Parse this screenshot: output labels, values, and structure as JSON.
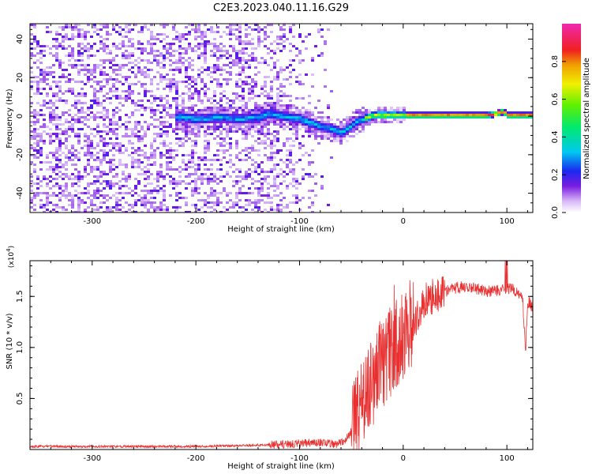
{
  "title": "C2E3.2023.040.11.16.G29",
  "chart_data": [
    {
      "type": "heatmap",
      "name": "spectrogram",
      "title": "C2E3.2023.040.11.16.G29",
      "xlabel": "Height of straight line (km)",
      "ylabel": "Frequency (Hz)",
      "xlim": [
        -360,
        125
      ],
      "ylim": [
        -50,
        48
      ],
      "xticks": [
        -300,
        -200,
        -100,
        0,
        100
      ],
      "xtick_labels": [
        "-300",
        "-200",
        "-100",
        "0",
        "100"
      ],
      "yticks": [
        -40,
        -20,
        0,
        20,
        40
      ],
      "ytick_labels": [
        "-40",
        "-20",
        "0",
        "20",
        "40"
      ],
      "colorbar": {
        "label": "Normalized spectral amplitude",
        "range": [
          0.0,
          1.0
        ],
        "ticks": [
          0.0,
          0.2,
          0.4,
          0.6,
          0.8
        ],
        "tick_labels": [
          "0.0",
          "0.2",
          "0.4",
          "0.6",
          "0.8"
        ]
      },
      "ridge": {
        "x": [
          -215,
          -200,
          -180,
          -160,
          -140,
          -130,
          -120,
          -110,
          -100,
          -90,
          -80,
          -70,
          -60,
          -55,
          -50,
          -45,
          -40,
          -35,
          -30,
          -20,
          -10,
          0,
          20,
          50,
          80,
          90,
          95,
          100,
          125
        ],
        "y": [
          0,
          -1,
          0,
          -1,
          0,
          2,
          1,
          0,
          -1,
          -3,
          -5,
          -6,
          -8,
          -6,
          -4,
          -2,
          -1,
          0,
          1,
          1,
          1,
          1,
          1,
          1,
          1,
          2,
          3,
          1,
          1
        ]
      }
    },
    {
      "type": "line",
      "name": "snr",
      "xlabel": "Height of straight line (km)",
      "ylabel": "SNR (10 * v/v)",
      "scale_label": "(x10^4)",
      "xlim": [
        -360,
        125
      ],
      "ylim": [
        0,
        1.85
      ],
      "xticks": [
        -300,
        -200,
        -100,
        0,
        100
      ],
      "xtick_labels": [
        "-300",
        "-200",
        "-100",
        "0",
        "100"
      ],
      "yticks": [
        0.5,
        1.0,
        1.5
      ],
      "ytick_labels": [
        "0.5",
        "1.0",
        "1.5"
      ],
      "series": [
        {
          "name": "SNR",
          "color": "#e83030",
          "x": [
            -360,
            -300,
            -200,
            -150,
            -120,
            -100,
            -80,
            -65,
            -55,
            -50,
            -45,
            -40,
            -35,
            -30,
            -25,
            -20,
            -15,
            -10,
            -5,
            0,
            5,
            10,
            15,
            20,
            30,
            40,
            50,
            60,
            70,
            80,
            90,
            100,
            110,
            115,
            118,
            120,
            125
          ],
          "y": [
            0.03,
            0.03,
            0.03,
            0.04,
            0.05,
            0.06,
            0.07,
            0.05,
            0.1,
            0.18,
            0.3,
            0.45,
            0.55,
            0.65,
            0.75,
            0.85,
            0.9,
            1.0,
            1.05,
            1.1,
            1.15,
            1.25,
            1.35,
            1.45,
            1.5,
            1.55,
            1.58,
            1.6,
            1.58,
            1.55,
            1.55,
            1.58,
            1.55,
            1.5,
            0.95,
            1.45,
            1.4
          ]
        }
      ]
    }
  ]
}
